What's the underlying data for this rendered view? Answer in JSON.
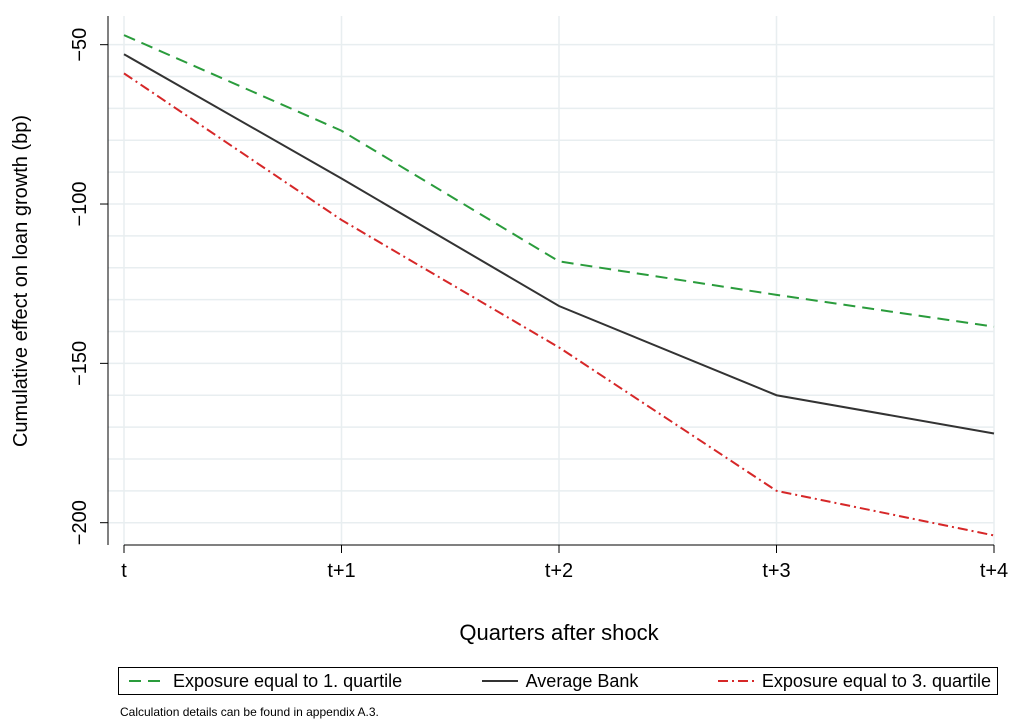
{
  "chart_data": {
    "type": "line",
    "categories": [
      "t",
      "t+1",
      "t+2",
      "t+3",
      "t+4"
    ],
    "xlabel": "Quarters after shock",
    "ylabel": "Cumulative effect on loan growth (bp)",
    "ylim": [
      -207,
      -41
    ],
    "yticks": [
      -50,
      -100,
      -150,
      -200
    ],
    "ytick_labels": [
      "−50",
      "−100",
      "−150",
      "−200"
    ],
    "grid": true,
    "legend_position": "bottom",
    "series": [
      {
        "name": "Exposure equal to 1. quartile",
        "values": [
          -47,
          -77,
          -118,
          -128.5,
          -138.5
        ],
        "color": "#2a9c3c",
        "dash": "12,7"
      },
      {
        "name": "Average Bank",
        "values": [
          -53,
          -92,
          -132,
          -160,
          -172
        ],
        "color": "#333333",
        "dash": ""
      },
      {
        "name": "Exposure equal to 3. quartile",
        "values": [
          -59,
          -105,
          -145,
          -190,
          -204
        ],
        "color": "#d62728",
        "dash": "10,4,2,4"
      }
    ]
  },
  "note": "Calculation details can be found in appendix A.3."
}
